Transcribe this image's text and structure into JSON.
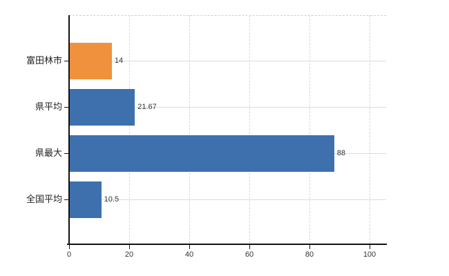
{
  "chart_data": {
    "type": "bar",
    "orientation": "horizontal",
    "title": "",
    "xlabel": "",
    "ylabel": "",
    "categories": [
      "富田林市",
      "県平均",
      "県最大",
      "全国平均"
    ],
    "values": [
      14,
      21.67,
      88,
      10.5
    ],
    "value_labels": [
      "14",
      "21.67",
      "88",
      "10.5"
    ],
    "bar_colors": [
      "#f0923d",
      "#3e70ae",
      "#3e70ae",
      "#3e70ae"
    ],
    "xlim": [
      0,
      100
    ],
    "x_ticks": [
      0,
      20,
      40,
      60,
      80,
      100
    ],
    "x_tick_labels": [
      "0",
      "20",
      "40",
      "60",
      "80",
      "100"
    ],
    "grid": true,
    "legend": false
  },
  "colors": {
    "highlight_bar": "#f0923d",
    "default_bar": "#3e70ae",
    "gridline": "#d9ded9",
    "axis": "#111111",
    "text": "#222222"
  }
}
